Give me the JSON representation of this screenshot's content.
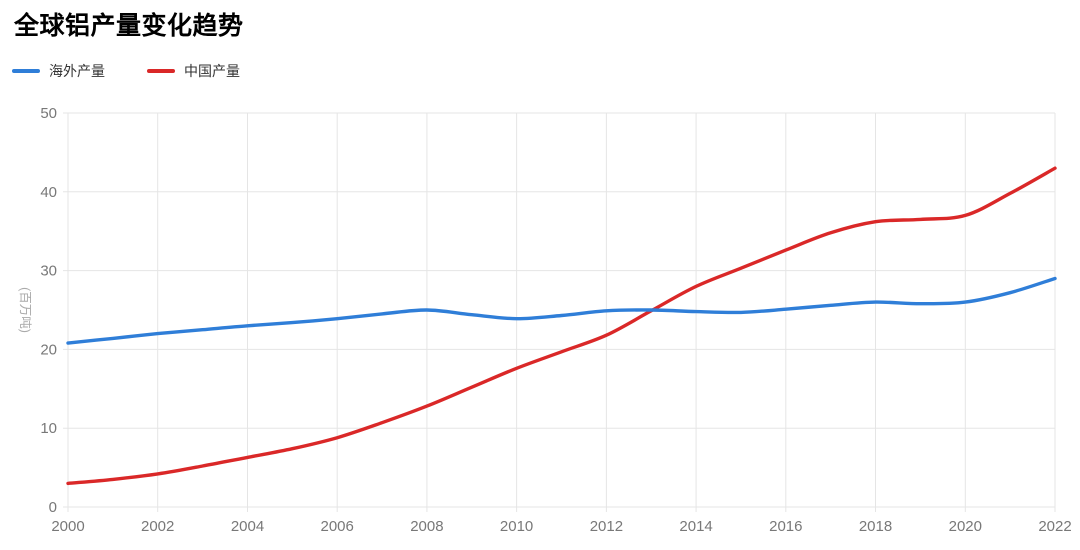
{
  "chart_data": {
    "type": "line",
    "title": "全球铝产量变化趋势",
    "ylabel": "(百万吨)",
    "xlabel": "",
    "smooth": true,
    "grid": true,
    "legend_position": "top-left",
    "xlim": [
      2000,
      2022
    ],
    "ylim": [
      0,
      50
    ],
    "xticks": [
      2000,
      2002,
      2004,
      2006,
      2008,
      2010,
      2012,
      2014,
      2016,
      2018,
      2020,
      2022
    ],
    "yticks": [
      0,
      10,
      20,
      30,
      40,
      50
    ],
    "x": [
      2000,
      2001,
      2002,
      2003,
      2004,
      2005,
      2006,
      2007,
      2008,
      2009,
      2010,
      2011,
      2012,
      2013,
      2014,
      2015,
      2016,
      2017,
      2018,
      2019,
      2020,
      2021,
      2022
    ],
    "series": [
      {
        "name": "海外产量",
        "color": "#2f7ed8",
        "values": [
          20.8,
          21.4,
          22.0,
          22.5,
          23.0,
          23.4,
          23.9,
          24.5,
          25.0,
          24.4,
          23.9,
          24.3,
          24.9,
          25.0,
          24.8,
          24.7,
          25.1,
          25.6,
          26.0,
          25.8,
          26.0,
          27.2,
          29.0
        ]
      },
      {
        "name": "中国产量",
        "color": "#da2828",
        "values": [
          3.0,
          3.5,
          4.2,
          5.2,
          6.3,
          7.4,
          8.8,
          10.7,
          12.8,
          15.2,
          17.6,
          19.7,
          21.8,
          24.9,
          28.0,
          30.3,
          32.6,
          34.8,
          36.2,
          36.5,
          37.0,
          39.8,
          43.0
        ]
      }
    ],
    "styles": {
      "grid_color": "#e5e5e5",
      "axis_label_color": "#787878",
      "axis_name_color": "#aaaaaa",
      "tick_font_size": 15,
      "line_width": 3.4
    }
  }
}
